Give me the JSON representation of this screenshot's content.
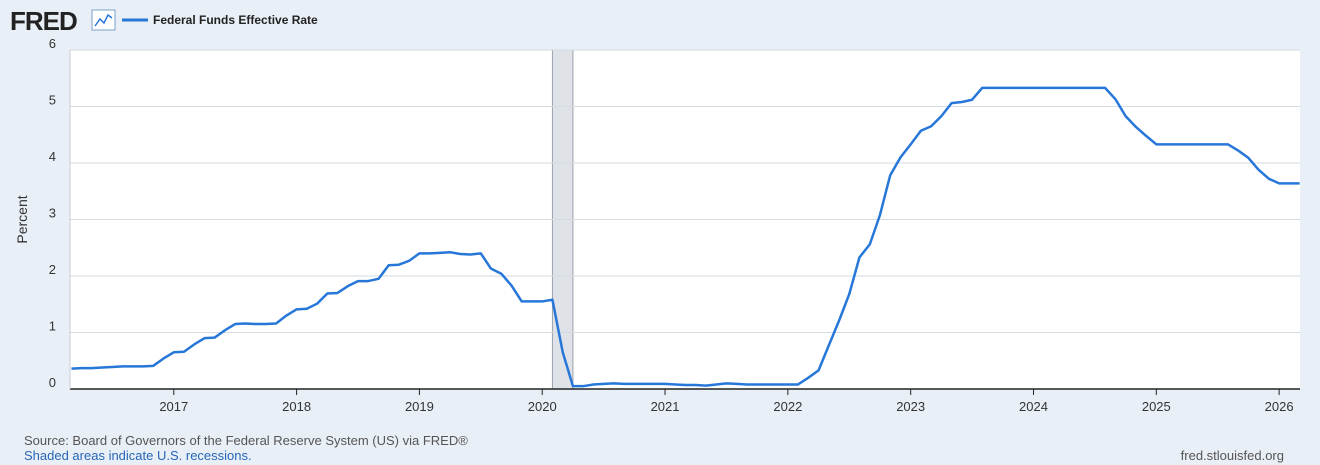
{
  "chart_data": {
    "type": "line",
    "logo": "FRED",
    "y_label": "Percent",
    "source": "Source: Board of Governors of the Federal Reserve System (US) via FRED®",
    "note": "Shaded areas indicate U.S. recessions.",
    "credit": "fred.stlouisfed.org",
    "xlim": [
      2016.155,
      2026.17
    ],
    "xticks": [
      2017,
      2018,
      2019,
      2020,
      2021,
      2022,
      2023,
      2024,
      2025,
      2026
    ],
    "ylim": [
      0,
      6
    ],
    "yticks": [
      0,
      1,
      2,
      3,
      4,
      5,
      6
    ],
    "grid": true,
    "recessions": [
      [
        2020.083,
        2020.25
      ]
    ],
    "x": [
      2016.167,
      2016.25,
      2016.333,
      2016.417,
      2016.5,
      2016.583,
      2016.667,
      2016.75,
      2016.833,
      2016.917,
      2017,
      2017.083,
      2017.167,
      2017.25,
      2017.333,
      2017.417,
      2017.5,
      2017.583,
      2017.667,
      2017.75,
      2017.833,
      2017.917,
      2018,
      2018.083,
      2018.167,
      2018.25,
      2018.333,
      2018.417,
      2018.5,
      2018.583,
      2018.667,
      2018.75,
      2018.833,
      2018.917,
      2019,
      2019.083,
      2019.167,
      2019.25,
      2019.333,
      2019.417,
      2019.5,
      2019.583,
      2019.667,
      2019.75,
      2019.833,
      2019.917,
      2020,
      2020.083,
      2020.167,
      2020.25,
      2020.333,
      2020.417,
      2020.5,
      2020.583,
      2020.667,
      2020.75,
      2020.833,
      2020.917,
      2021,
      2021.083,
      2021.167,
      2021.25,
      2021.333,
      2021.417,
      2021.5,
      2021.583,
      2021.667,
      2021.75,
      2021.833,
      2021.917,
      2022,
      2022.083,
      2022.167,
      2022.25,
      2022.333,
      2022.417,
      2022.5,
      2022.583,
      2022.667,
      2022.75,
      2022.833,
      2022.917,
      2023,
      2023.083,
      2023.167,
      2023.25,
      2023.333,
      2023.417,
      2023.5,
      2023.583,
      2023.667,
      2023.75,
      2023.833,
      2023.917,
      2024,
      2024.083,
      2024.167,
      2024.25,
      2024.333,
      2024.417,
      2024.5,
      2024.583,
      2024.667,
      2024.75,
      2024.833,
      2024.917,
      2025,
      2025.083,
      2025.167,
      2025.25,
      2025.333,
      2025.417,
      2025.5,
      2025.583,
      2025.667,
      2025.75,
      2025.833,
      2025.917,
      2026,
      2026.083,
      2026.167
    ],
    "series": [
      {
        "name": "Federal Funds Effective Rate",
        "color": "#2777d9",
        "values": [
          0.36,
          0.37,
          0.37,
          0.38,
          0.39,
          0.4,
          0.4,
          0.4,
          0.41,
          0.54,
          0.65,
          0.66,
          0.79,
          0.9,
          0.91,
          1.04,
          1.15,
          1.16,
          1.15,
          1.15,
          1.16,
          1.3,
          1.41,
          1.42,
          1.51,
          1.69,
          1.7,
          1.82,
          1.91,
          1.91,
          1.95,
          2.19,
          2.2,
          2.27,
          2.4,
          2.4,
          2.41,
          2.42,
          2.39,
          2.38,
          2.4,
          2.13,
          2.04,
          1.83,
          1.55,
          1.55,
          1.55,
          1.58,
          0.65,
          0.05,
          0.05,
          0.08,
          0.09,
          0.1,
          0.09,
          0.09,
          0.09,
          0.09,
          0.09,
          0.08,
          0.07,
          0.07,
          0.06,
          0.08,
          0.1,
          0.09,
          0.08,
          0.08,
          0.08,
          0.08,
          0.08,
          0.08,
          0.2,
          0.33,
          0.77,
          1.21,
          1.68,
          2.33,
          2.56,
          3.08,
          3.78,
          4.1,
          4.33,
          4.57,
          4.65,
          4.83,
          5.06,
          5.08,
          5.12,
          5.33,
          5.33,
          5.33,
          5.33,
          5.33,
          5.33,
          5.33,
          5.33,
          5.33,
          5.33,
          5.33,
          5.33,
          5.33,
          5.13,
          4.83,
          4.64,
          4.48,
          4.33,
          4.33,
          4.33,
          4.33,
          4.33,
          4.33,
          4.33,
          4.33,
          4.22,
          4.09,
          3.88,
          3.72,
          3.64,
          3.64,
          3.64
        ]
      }
    ]
  }
}
